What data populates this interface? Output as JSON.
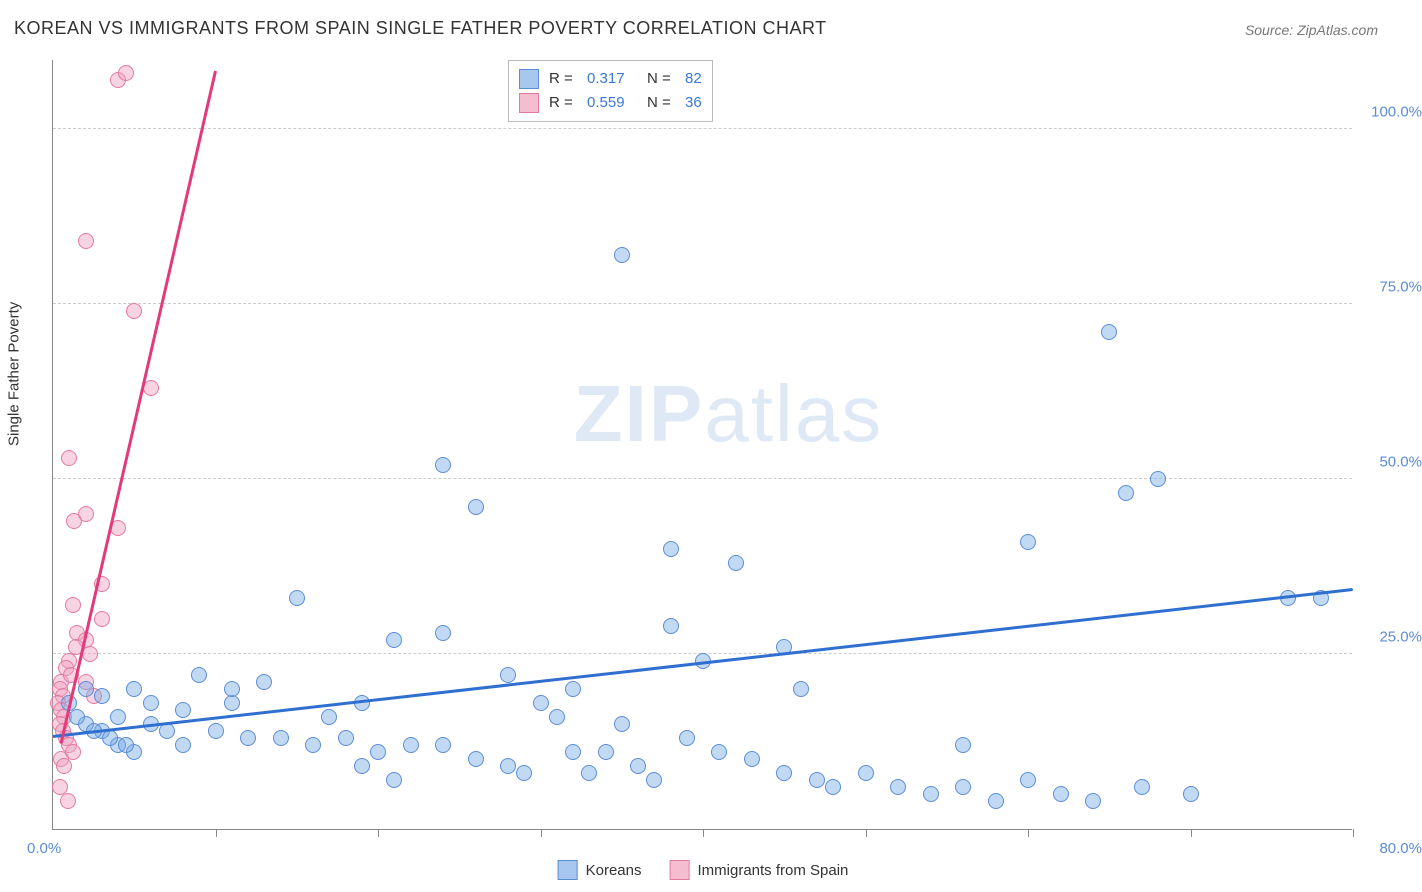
{
  "title": "KOREAN VS IMMIGRANTS FROM SPAIN SINGLE FATHER POVERTY CORRELATION CHART",
  "source": "Source: ZipAtlas.com",
  "watermark_a": "ZIP",
  "watermark_b": "atlas",
  "y_axis_label": "Single Father Poverty",
  "chart": {
    "type": "scatter",
    "background_color": "#ffffff",
    "grid_color": "#cccccc",
    "axis_color": "#888888",
    "xlim": [
      0,
      80
    ],
    "ylim": [
      0,
      110
    ],
    "x_tick_positions": [
      0,
      10,
      20,
      30,
      40,
      50,
      60,
      70,
      80
    ],
    "y_tick_positions": [
      25,
      50,
      75,
      100
    ],
    "y_tick_labels": [
      "25.0%",
      "50.0%",
      "75.0%",
      "100.0%"
    ],
    "x_zero_label": "0.0%",
    "x_max_label": "80.0%",
    "marker_radius": 8,
    "marker_border_width": 1.2
  },
  "series": {
    "blue": {
      "label": "Koreans",
      "fill_color": "rgba(120,170,230,0.45)",
      "stroke_color": "#5b8dd6",
      "swatch_fill": "#a7c7ee",
      "swatch_border": "#5b8dd6",
      "R": "0.317",
      "N": "82",
      "trend": {
        "x1": 0,
        "y1": 13,
        "x2": 80,
        "y2": 34,
        "color": "#2f6fd0"
      },
      "points": [
        [
          35,
          82
        ],
        [
          65,
          71
        ],
        [
          68,
          50
        ],
        [
          24,
          52
        ],
        [
          66,
          48
        ],
        [
          26,
          46
        ],
        [
          60,
          41
        ],
        [
          38,
          40
        ],
        [
          42,
          38
        ],
        [
          15,
          33
        ],
        [
          76,
          33
        ],
        [
          78,
          33
        ],
        [
          38,
          29
        ],
        [
          21,
          27
        ],
        [
          45,
          26
        ],
        [
          9,
          22
        ],
        [
          40,
          24
        ],
        [
          24,
          28
        ],
        [
          32,
          20
        ],
        [
          30,
          18
        ],
        [
          28,
          22
        ],
        [
          11,
          18
        ],
        [
          8,
          17
        ],
        [
          5,
          20
        ],
        [
          3,
          19
        ],
        [
          2,
          20
        ],
        [
          4,
          16
        ],
        [
          6,
          15
        ],
        [
          7,
          14
        ],
        [
          10,
          14
        ],
        [
          12,
          13
        ],
        [
          14,
          13
        ],
        [
          16,
          12
        ],
        [
          18,
          13
        ],
        [
          20,
          11
        ],
        [
          22,
          12
        ],
        [
          19,
          9
        ],
        [
          24,
          12
        ],
        [
          26,
          10
        ],
        [
          28,
          9
        ],
        [
          29,
          8
        ],
        [
          31,
          16
        ],
        [
          33,
          8
        ],
        [
          34,
          11
        ],
        [
          36,
          9
        ],
        [
          37,
          7
        ],
        [
          39,
          13
        ],
        [
          41,
          11
        ],
        [
          43,
          10
        ],
        [
          45,
          8
        ],
        [
          47,
          7
        ],
        [
          48,
          6
        ],
        [
          50,
          8
        ],
        [
          52,
          6
        ],
        [
          54,
          5
        ],
        [
          56,
          6
        ],
        [
          58,
          4
        ],
        [
          60,
          7
        ],
        [
          62,
          5
        ],
        [
          64,
          4
        ],
        [
          67,
          6
        ],
        [
          70,
          5
        ],
        [
          2,
          15
        ],
        [
          3,
          14
        ],
        [
          4,
          12
        ],
        [
          5,
          11
        ],
        [
          6,
          18
        ],
        [
          1,
          18
        ],
        [
          1.5,
          16
        ],
        [
          2.5,
          14
        ],
        [
          3.5,
          13
        ],
        [
          4.5,
          12
        ],
        [
          8,
          12
        ],
        [
          11,
          20
        ],
        [
          13,
          21
        ],
        [
          17,
          16
        ],
        [
          21,
          7
        ],
        [
          19,
          18
        ],
        [
          35,
          15
        ],
        [
          32,
          11
        ],
        [
          46,
          20
        ],
        [
          56,
          12
        ]
      ]
    },
    "pink": {
      "label": "Immigrants from Spain",
      "fill_color": "rgba(240,160,190,0.45)",
      "stroke_color": "#e47aa0",
      "swatch_fill": "#f4bed0",
      "swatch_border": "#e47aa0",
      "R": "0.559",
      "N": "36",
      "trend": {
        "x1": 0.5,
        "y1": 12,
        "x2": 10,
        "y2": 108,
        "color": "#e23a7a"
      },
      "points": [
        [
          4,
          107
        ],
        [
          4.5,
          108
        ],
        [
          2,
          84
        ],
        [
          5,
          74
        ],
        [
          6,
          63
        ],
        [
          1,
          53
        ],
        [
          2,
          45
        ],
        [
          1.3,
          44
        ],
        [
          4,
          43
        ],
        [
          3,
          35
        ],
        [
          1.2,
          32
        ],
        [
          1.5,
          28
        ],
        [
          2,
          27
        ],
        [
          2.3,
          25
        ],
        [
          1,
          24
        ],
        [
          0.8,
          23
        ],
        [
          0.5,
          21
        ],
        [
          0.4,
          20
        ],
        [
          0.6,
          19
        ],
        [
          0.3,
          18
        ],
        [
          0.5,
          17
        ],
        [
          0.7,
          16
        ],
        [
          0.4,
          15
        ],
        [
          0.6,
          14
        ],
        [
          0.8,
          13
        ],
        [
          1,
          12
        ],
        [
          1.2,
          11
        ],
        [
          0.5,
          10
        ],
        [
          0.7,
          9
        ],
        [
          0.4,
          6
        ],
        [
          0.9,
          4
        ],
        [
          1.1,
          22
        ],
        [
          1.4,
          26
        ],
        [
          2,
          21
        ],
        [
          2.5,
          19
        ],
        [
          3,
          30
        ]
      ]
    }
  },
  "legend_labels": {
    "R": "R =",
    "N": "N ="
  }
}
